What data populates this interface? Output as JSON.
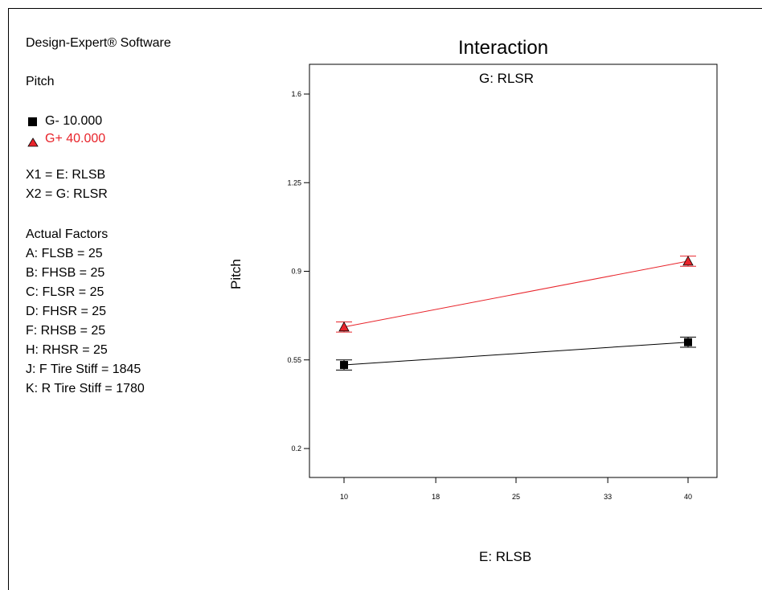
{
  "software": "Design-Expert® Software",
  "response": "Pitch",
  "legend": [
    {
      "label": "G- 10.000",
      "color": "#000000",
      "marker": "square"
    },
    {
      "label": "G+ 40.000",
      "color": "#e8242b",
      "marker": "triangle"
    }
  ],
  "factor_map": [
    "X1 = E: RLSB",
    "X2 = G: RLSR"
  ],
  "actual_factors_heading": "Actual Factors",
  "actual_factors": [
    "A: FLSB = 25",
    "B: FHSB = 25",
    "C: FLSR = 25",
    "D: FHSR = 25",
    "F: RHSB = 25",
    "H: RHSR = 25",
    "J: F Tire Stiff = 1845",
    "K: R Tire Stiff = 1780"
  ],
  "chart_data": {
    "type": "line",
    "title": "Interaction",
    "subtitle": "G: RLSR",
    "xlabel": "E: RLSB",
    "ylabel": "Pitch",
    "xlim": [
      10,
      40
    ],
    "ylim": [
      0.2,
      1.6
    ],
    "x_ticks": [
      10,
      18,
      25,
      33,
      40
    ],
    "x_tick_labels": [
      "10",
      "18",
      "25",
      "33",
      "40"
    ],
    "y_ticks": [
      0.2,
      0.55,
      0.9,
      1.25,
      1.6
    ],
    "y_tick_labels": [
      "0.2",
      "0.55",
      "0.9",
      "1.25",
      "1.6"
    ],
    "grid": false,
    "series": [
      {
        "name": "G- 10.000",
        "color": "#000000",
        "marker": "square",
        "x": [
          10,
          40
        ],
        "y": [
          0.53,
          0.62
        ],
        "error": [
          0.02,
          0.02
        ]
      },
      {
        "name": "G+ 40.000",
        "color": "#e8242b",
        "marker": "triangle",
        "x": [
          10,
          40
        ],
        "y": [
          0.68,
          0.94
        ],
        "error": [
          0.02,
          0.02
        ]
      }
    ]
  }
}
